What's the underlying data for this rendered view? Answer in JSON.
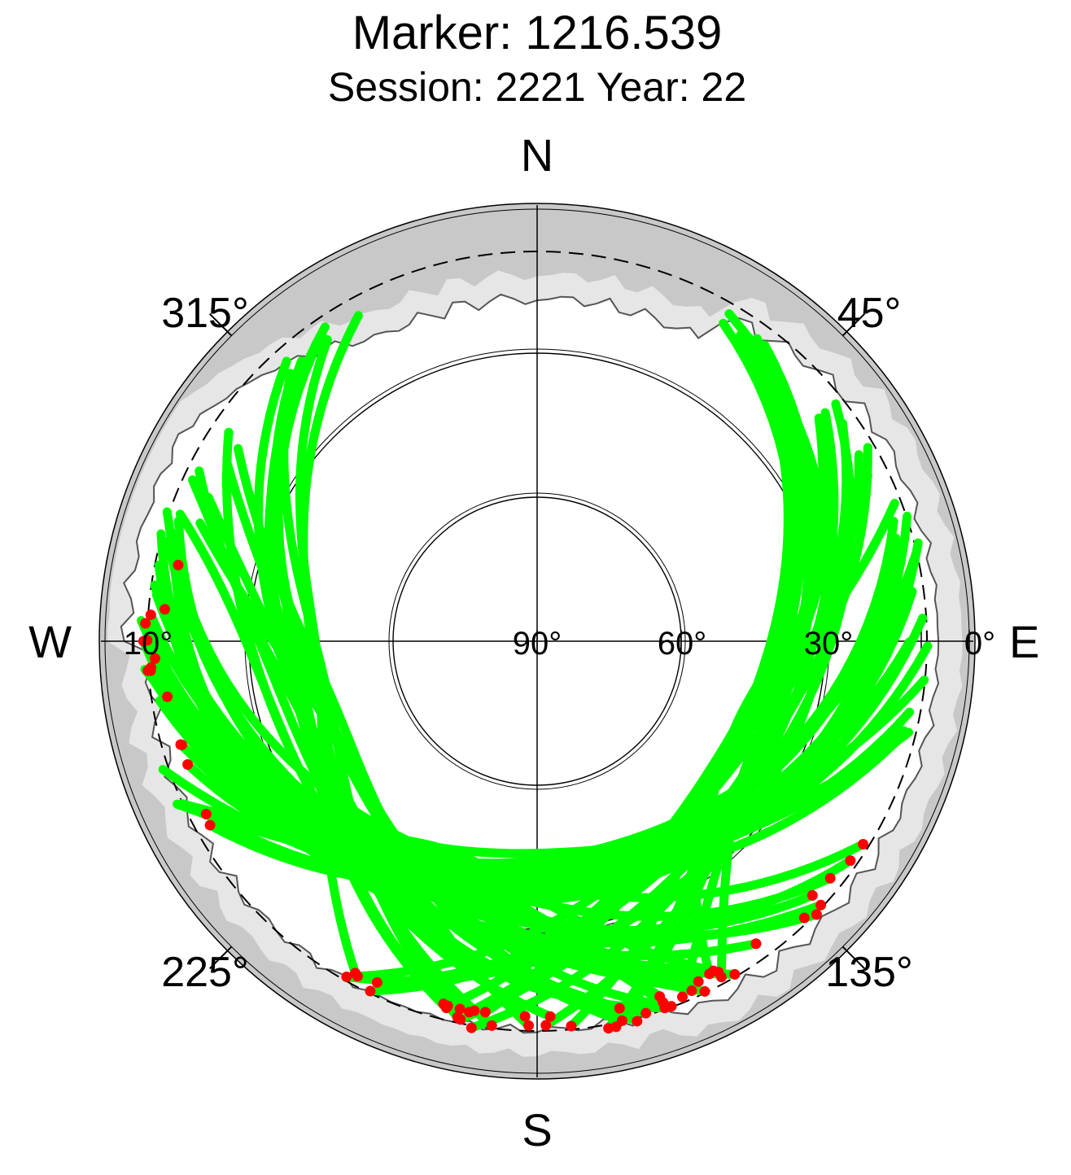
{
  "chart_data": {
    "type": "scatter",
    "projection": "polar-sky",
    "title": "Marker: 1216.539",
    "subtitle": "Session: 2221 Year: 22",
    "cardinal_labels": {
      "north": "N",
      "south": "S",
      "east": "E",
      "west": "W"
    },
    "azimuth_tick_labels": [
      "45°",
      "135°",
      "225°",
      "315°"
    ],
    "azimuth_ticks_deg": [
      45,
      135,
      225,
      315
    ],
    "elevation_tick_labels": [
      "0°",
      "10°",
      "30°",
      "60°",
      "90°"
    ],
    "elevation_ticks_deg": [
      0,
      10,
      30,
      60,
      90
    ],
    "elevation_circles_deg": [
      30,
      60
    ],
    "elevation_cutoff_deg": 10,
    "azimuth_range_deg": [
      0,
      360
    ],
    "elevation_range_deg": [
      0,
      90
    ],
    "grid": true,
    "colors": {
      "tracks": "#00ff00",
      "track_endpoints": "#ff0000",
      "mask_outer": "#c8c8c8",
      "mask_inner": "#e6e6e6",
      "grid": "#000000"
    },
    "track_count": 64
  }
}
